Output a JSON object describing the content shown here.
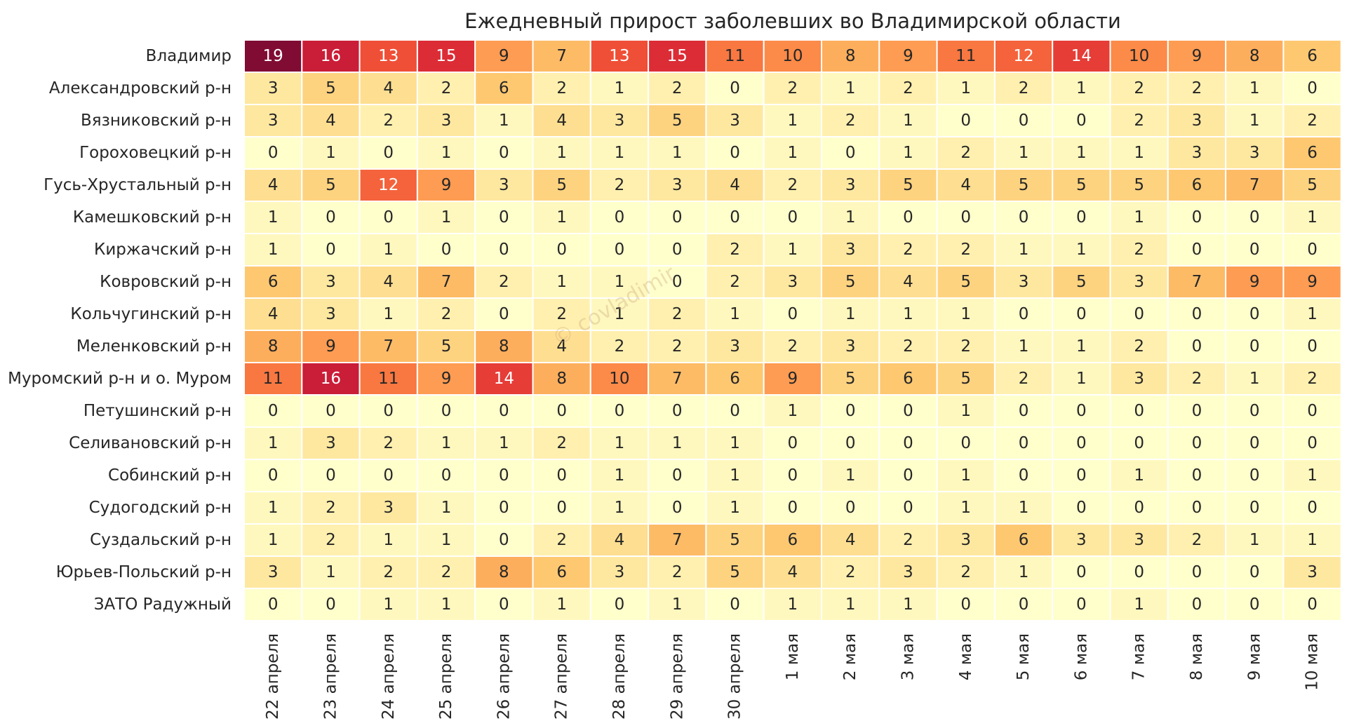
{
  "chart_data": {
    "type": "heatmap",
    "title": "Ежедневный прирост заболевших во Владимирской области",
    "watermark": "© covladimir",
    "xlabel": "",
    "ylabel": "",
    "color_scale": "YlOrRd",
    "value_range": [
      0,
      19
    ],
    "columns": [
      "22 апреля",
      "23 апреля",
      "24 апреля",
      "25 апреля",
      "26 апреля",
      "27 апреля",
      "28 апреля",
      "29 апреля",
      "30 апреля",
      "1 мая",
      "2 мая",
      "3 мая",
      "4 мая",
      "5 мая",
      "6 мая",
      "7 мая",
      "8 мая",
      "9 мая",
      "10 мая"
    ],
    "rows": [
      {
        "name": "Владимир",
        "values": [
          19,
          16,
          13,
          15,
          9,
          7,
          13,
          15,
          11,
          10,
          8,
          9,
          11,
          12,
          14,
          10,
          9,
          8,
          6
        ]
      },
      {
        "name": "Александровский р-н",
        "values": [
          3,
          5,
          4,
          2,
          6,
          2,
          1,
          2,
          0,
          2,
          1,
          2,
          1,
          2,
          1,
          2,
          2,
          1,
          0
        ]
      },
      {
        "name": "Вязниковский р-н",
        "values": [
          3,
          4,
          2,
          3,
          1,
          4,
          3,
          5,
          3,
          1,
          2,
          1,
          0,
          0,
          0,
          2,
          3,
          1,
          2
        ]
      },
      {
        "name": "Гороховецкий р-н",
        "values": [
          0,
          1,
          0,
          1,
          0,
          1,
          1,
          1,
          0,
          1,
          0,
          1,
          2,
          1,
          1,
          1,
          3,
          3,
          6
        ]
      },
      {
        "name": "Гусь-Хрустальный р-н",
        "values": [
          4,
          5,
          12,
          9,
          3,
          5,
          2,
          3,
          4,
          2,
          3,
          5,
          4,
          5,
          5,
          5,
          6,
          7,
          5
        ]
      },
      {
        "name": "Камешковский р-н",
        "values": [
          1,
          0,
          0,
          1,
          0,
          1,
          0,
          0,
          0,
          0,
          1,
          0,
          0,
          0,
          0,
          1,
          0,
          0,
          1
        ]
      },
      {
        "name": "Киржачский р-н",
        "values": [
          1,
          0,
          1,
          0,
          0,
          0,
          0,
          0,
          2,
          1,
          3,
          2,
          2,
          1,
          1,
          2,
          0,
          0,
          0
        ]
      },
      {
        "name": "Ковровский р-н",
        "values": [
          6,
          3,
          4,
          7,
          2,
          1,
          1,
          0,
          2,
          3,
          5,
          4,
          5,
          3,
          5,
          3,
          7,
          9,
          9
        ]
      },
      {
        "name": "Кольчугинский р-н",
        "values": [
          4,
          3,
          1,
          2,
          0,
          2,
          1,
          2,
          1,
          0,
          1,
          1,
          1,
          0,
          0,
          0,
          0,
          0,
          1
        ]
      },
      {
        "name": "Меленковский р-н",
        "values": [
          8,
          9,
          7,
          5,
          8,
          4,
          2,
          2,
          3,
          2,
          3,
          2,
          2,
          1,
          1,
          2,
          0,
          0,
          0
        ]
      },
      {
        "name": "Муромский р-н и о. Муром",
        "values": [
          11,
          16,
          11,
          9,
          14,
          8,
          10,
          7,
          6,
          9,
          5,
          6,
          5,
          2,
          1,
          3,
          2,
          1,
          2
        ]
      },
      {
        "name": "Петушинский р-н",
        "values": [
          0,
          0,
          0,
          0,
          0,
          0,
          0,
          0,
          0,
          1,
          0,
          0,
          1,
          0,
          0,
          0,
          0,
          0,
          0
        ]
      },
      {
        "name": "Селивановский р-н",
        "values": [
          1,
          3,
          2,
          1,
          1,
          2,
          1,
          1,
          1,
          0,
          0,
          0,
          0,
          0,
          0,
          0,
          0,
          0,
          0
        ]
      },
      {
        "name": "Собинский р-н",
        "values": [
          0,
          0,
          0,
          0,
          0,
          0,
          1,
          0,
          1,
          0,
          1,
          0,
          1,
          0,
          0,
          1,
          0,
          0,
          1
        ]
      },
      {
        "name": "Судогодский р-н",
        "values": [
          1,
          2,
          3,
          1,
          0,
          0,
          1,
          0,
          1,
          0,
          0,
          0,
          1,
          1,
          0,
          0,
          0,
          0,
          0
        ]
      },
      {
        "name": "Суздальский р-н",
        "values": [
          1,
          2,
          1,
          1,
          0,
          2,
          4,
          7,
          5,
          6,
          4,
          2,
          3,
          6,
          3,
          3,
          2,
          1,
          1
        ]
      },
      {
        "name": "Юрьев-Польский р-н",
        "values": [
          3,
          1,
          2,
          2,
          8,
          6,
          3,
          2,
          5,
          4,
          2,
          3,
          2,
          1,
          0,
          0,
          0,
          0,
          3
        ]
      },
      {
        "name": "ЗАТО Радужный",
        "values": [
          0,
          0,
          1,
          1,
          0,
          1,
          0,
          1,
          0,
          1,
          1,
          1,
          0,
          0,
          0,
          1,
          0,
          0,
          0
        ]
      }
    ]
  }
}
